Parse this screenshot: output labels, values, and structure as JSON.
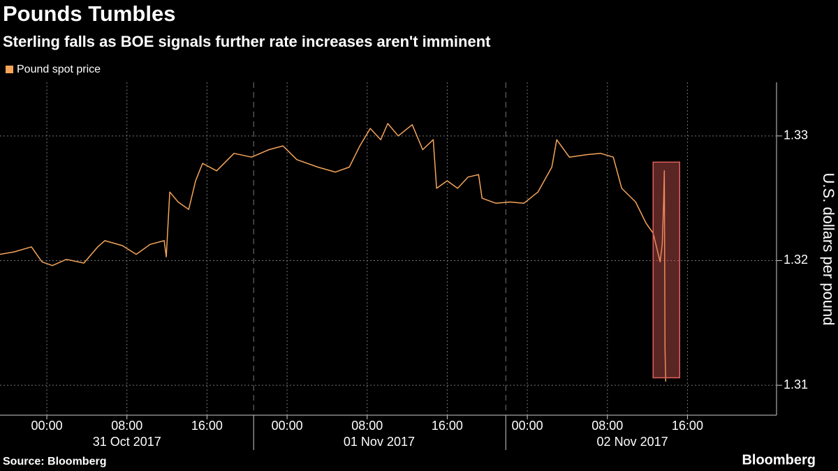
{
  "chart_data": {
    "type": "line",
    "title": "Pounds Tumbles",
    "subtitle": "Sterling falls as BOE signals further rate increases aren't imminent",
    "y_label": "U.S. dollars per pound",
    "source": "Source: Bloomberg",
    "brand": "Bloomberg",
    "x": [
      -4.68,
      -3.28,
      -1.54,
      -0.49,
      0.56,
      1.95,
      3.7,
      5.09,
      5.79,
      7.54,
      8.93,
      10.33,
      11.72,
      11.93,
      12.28,
      13.12,
      14.17,
      14.86,
      15.56,
      16.96,
      18.7,
      20.45,
      22.19,
      23.59,
      24.98,
      27.08,
      28.82,
      30.22,
      31.27,
      32.31,
      33.36,
      34.06,
      35.11,
      36.5,
      37.55,
      38.6,
      38.94,
      40.0,
      41.04,
      42.08,
      43.13,
      43.48,
      44.87,
      46.27,
      47.66,
      49.06,
      50.45,
      50.94,
      52.2,
      53.94,
      55.34,
      56.59,
      57.43,
      58.82,
      59.87,
      60.57,
      61.27,
      61.48,
      61.62,
      61.69,
      61.76,
      61.83
    ],
    "series": [
      {
        "name": "Pound spot price",
        "color": "#f5a55a",
        "values": [
          1.3205,
          1.3207,
          1.3211,
          1.3199,
          1.3196,
          1.3201,
          1.3198,
          1.3211,
          1.3216,
          1.3212,
          1.3205,
          1.3213,
          1.3216,
          1.3203,
          1.3255,
          1.3247,
          1.3241,
          1.3264,
          1.3278,
          1.3272,
          1.3286,
          1.3283,
          1.3289,
          1.3292,
          1.3281,
          1.3275,
          1.3271,
          1.3275,
          1.3292,
          1.3306,
          1.3297,
          1.331,
          1.33,
          1.3309,
          1.3289,
          1.3297,
          1.3258,
          1.3264,
          1.3258,
          1.3267,
          1.3269,
          1.325,
          1.3246,
          1.3247,
          1.3246,
          1.3255,
          1.3275,
          1.3297,
          1.3283,
          1.3285,
          1.3286,
          1.3283,
          1.3258,
          1.3247,
          1.323,
          1.3222,
          1.3199,
          1.3213,
          1.3247,
          1.3272,
          1.3129,
          1.3103
        ]
      }
    ],
    "xlim": [
      -4.68,
      72.9
    ],
    "ylim": [
      1.3076,
      1.3343
    ],
    "yticks": [
      1.31,
      1.32,
      1.33
    ],
    "xticks": [
      {
        "value": 0,
        "label": "00:00"
      },
      {
        "value": 8,
        "label": "08:00"
      },
      {
        "value": 16,
        "label": "16:00"
      },
      {
        "value": 24,
        "label": "00:00"
      },
      {
        "value": 32,
        "label": "08:00"
      },
      {
        "value": 40,
        "label": "16:00"
      },
      {
        "value": 48,
        "label": "00:00"
      },
      {
        "value": 56,
        "label": "08:00"
      },
      {
        "value": 64,
        "label": "16:00"
      }
    ],
    "date_labels": [
      {
        "value": 8,
        "label": "31 Oct 2017"
      },
      {
        "value": 33.2,
        "label": "01 Nov 2017"
      },
      {
        "value": 58.5,
        "label": "02 Nov 2017"
      }
    ],
    "date_dividers": [
      20.66,
      45.85
    ],
    "highlight": {
      "x": [
        60.57,
        63.22
      ],
      "y": [
        1.3106,
        1.3279
      ],
      "color": "#e0605a"
    },
    "grid": true
  }
}
